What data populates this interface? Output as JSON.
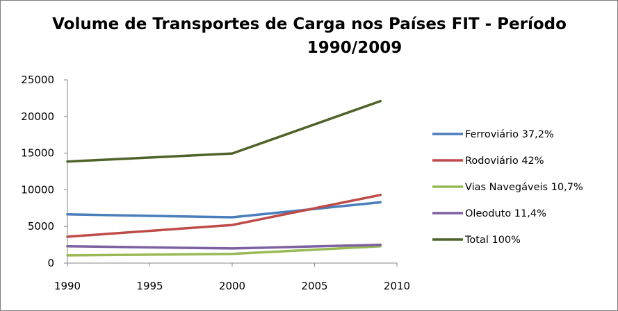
{
  "chart_data": {
    "type": "line",
    "title_line1": "Volume de Transportes de Carga nos Países FIT - Período",
    "title_line2": "1990/2009",
    "xlabel": "",
    "ylabel": "",
    "xlim": [
      1990,
      2010
    ],
    "ylim": [
      0,
      25000
    ],
    "x_ticks": [
      "1990",
      "1995",
      "2000",
      "2005",
      "2010"
    ],
    "y_ticks": [
      "0",
      "5000",
      "10000",
      "15000",
      "20000",
      "25000"
    ],
    "grid": false,
    "legend_position": "right",
    "series": [
      {
        "name": "Ferroviário  37,2%",
        "color": "#4a7ebb",
        "x": [
          1990,
          2000,
          2009
        ],
        "y": [
          6650,
          6250,
          8300
        ]
      },
      {
        "name": "Rodoviário  42%",
        "color": "#be4b48",
        "x": [
          1990,
          2000,
          2009
        ],
        "y": [
          3600,
          5200,
          9300
        ]
      },
      {
        "name": "Vias Navegáveis  10,7%",
        "color": "#98b954",
        "x": [
          1990,
          2000,
          2009
        ],
        "y": [
          1050,
          1250,
          2300
        ]
      },
      {
        "name": "Oleoduto  11,4%",
        "color": "#7d60a0",
        "x": [
          1990,
          2000,
          2009
        ],
        "y": [
          2300,
          2000,
          2500
        ]
      },
      {
        "name": "Total  100%",
        "color": "#4f6228",
        "x": [
          1990,
          2000,
          2009
        ],
        "y": [
          13850,
          14950,
          22100
        ]
      }
    ]
  }
}
